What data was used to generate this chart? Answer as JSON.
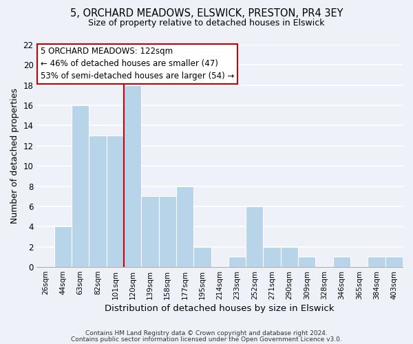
{
  "title": "5, ORCHARD MEADOWS, ELSWICK, PRESTON, PR4 3EY",
  "subtitle": "Size of property relative to detached houses in Elswick",
  "xlabel": "Distribution of detached houses by size in Elswick",
  "ylabel": "Number of detached properties",
  "bar_labels": [
    "26sqm",
    "44sqm",
    "63sqm",
    "82sqm",
    "101sqm",
    "120sqm",
    "139sqm",
    "158sqm",
    "177sqm",
    "195sqm",
    "214sqm",
    "233sqm",
    "252sqm",
    "271sqm",
    "290sqm",
    "309sqm",
    "328sqm",
    "346sqm",
    "365sqm",
    "384sqm",
    "403sqm"
  ],
  "bar_values": [
    0,
    4,
    16,
    13,
    13,
    18,
    7,
    7,
    8,
    2,
    0,
    1,
    6,
    2,
    2,
    1,
    0,
    1,
    0,
    1,
    1
  ],
  "bar_color": "#b8d4e8",
  "vline_x_index": 5,
  "vline_color": "#cc0000",
  "ylim": [
    0,
    22
  ],
  "yticks": [
    0,
    2,
    4,
    6,
    8,
    10,
    12,
    14,
    16,
    18,
    20,
    22
  ],
  "annotation_title": "5 ORCHARD MEADOWS: 122sqm",
  "annotation_line1": "← 46% of detached houses are smaller (47)",
  "annotation_line2": "53% of semi-detached houses are larger (54) →",
  "footer1": "Contains HM Land Registry data © Crown copyright and database right 2024.",
  "footer2": "Contains public sector information licensed under the Open Government Licence v3.0.",
  "bg_color": "#eef2f8",
  "plot_bg_color": "#eef2f8",
  "grid_color": "#ffffff"
}
